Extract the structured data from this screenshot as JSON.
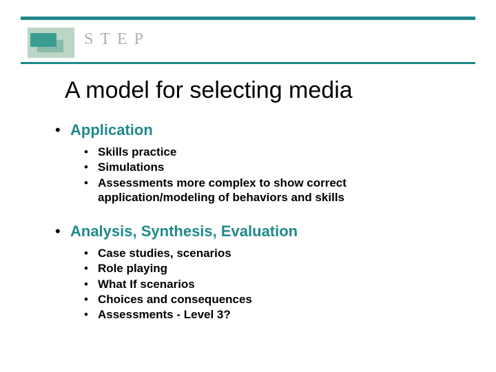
{
  "colors": {
    "accent": "#1f8a8a",
    "logo_bg": "#bcd5c6",
    "logo_step": "#3a9d8f",
    "brand_text": "#aab2b4",
    "body_text": "#000000",
    "background": "#ffffff"
  },
  "typography": {
    "title_fontsize": 34,
    "title_weight": "normal",
    "l1_fontsize": 22,
    "l1_weight": "bold",
    "l2_fontsize": 17,
    "l2_weight": "bold",
    "brand_fontsize": 24,
    "brand_letter_spacing": 10,
    "font_family": "Arial"
  },
  "brand": "STEP",
  "title": "A model for selecting media",
  "sections": [
    {
      "heading": "Application",
      "items": [
        "Skills practice",
        "Simulations",
        "Assessments more complex to show correct application/modeling of behaviors and skills"
      ]
    },
    {
      "heading": "Analysis, Synthesis, Evaluation",
      "items": [
        "Case studies, scenarios",
        "Role playing",
        "What If scenarios",
        "Choices and consequences",
        "Assessments - Level 3?"
      ]
    }
  ]
}
